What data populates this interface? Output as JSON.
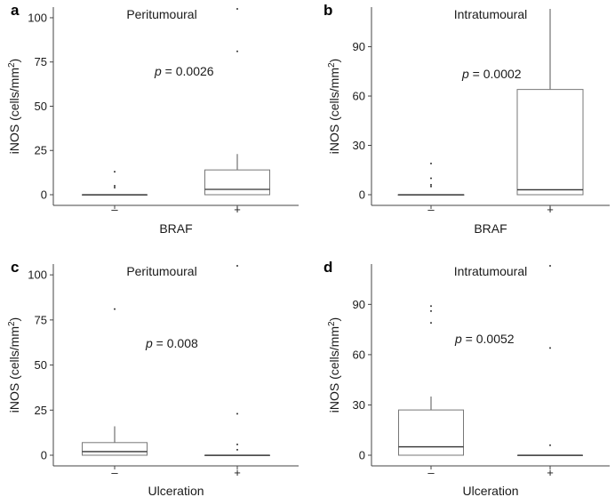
{
  "chart_data": [
    {
      "type": "box",
      "panel_letter": "a",
      "title": "Peritumoural",
      "xlabel": "BRAF",
      "ylabel": "iNOS (cells/mm",
      "ylabel_sup": "2",
      "ylabel_close": ")",
      "ylim": [
        0,
        105
      ],
      "yticks": [
        0,
        25,
        50,
        75,
        100
      ],
      "ytick_labels": [
        "0",
        "25",
        "50",
        "75",
        "100"
      ],
      "categories": [
        "–",
        "+"
      ],
      "p_label": "p",
      "p_value": " = 0.0026",
      "boxes": [
        {
          "category": "–",
          "min": 0,
          "q1": 0,
          "median": 0,
          "q3": 0,
          "max": 0,
          "outliers": [
            4,
            5,
            13
          ]
        },
        {
          "category": "+",
          "min": 0,
          "q1": 0,
          "median": 3,
          "q3": 14,
          "max": 23,
          "outliers": [
            81,
            105
          ]
        }
      ]
    },
    {
      "type": "box",
      "panel_letter": "b",
      "title": "Intratumoural",
      "xlabel": "BRAF",
      "ylabel": "iNOS (cells/mm",
      "ylabel_sup": "2",
      "ylabel_close": ")",
      "ylim": [
        0,
        113
      ],
      "yticks": [
        0,
        30,
        60,
        90
      ],
      "ytick_labels": [
        "0",
        "30",
        "60",
        "90"
      ],
      "categories": [
        "–",
        "+"
      ],
      "p_label": "p",
      "p_value": " = 0.0002",
      "boxes": [
        {
          "category": "–",
          "min": 0,
          "q1": 0,
          "median": 0,
          "q3": 0,
          "max": 0,
          "outliers": [
            5,
            6,
            10,
            19
          ]
        },
        {
          "category": "+",
          "min": 0,
          "q1": 0,
          "median": 3,
          "q3": 64,
          "max": 113,
          "outliers": []
        }
      ]
    },
    {
      "type": "box",
      "panel_letter": "c",
      "title": "Peritumoural",
      "xlabel": "Ulceration",
      "ylabel": "iNOS (cells/mm",
      "ylabel_sup": "2",
      "ylabel_close": ")",
      "ylim": [
        0,
        105
      ],
      "yticks": [
        0,
        25,
        50,
        75,
        100
      ],
      "ytick_labels": [
        "0",
        "25",
        "50",
        "75",
        "100"
      ],
      "categories": [
        "–",
        "+"
      ],
      "p_label": "p",
      "p_value": " = 0.008",
      "boxes": [
        {
          "category": "–",
          "min": 0,
          "q1": 0,
          "median": 2,
          "q3": 7,
          "max": 16,
          "outliers": [
            81
          ]
        },
        {
          "category": "+",
          "min": 0,
          "q1": 0,
          "median": 0,
          "q3": 0,
          "max": 0,
          "outliers": [
            3,
            6,
            23,
            105
          ]
        }
      ]
    },
    {
      "type": "box",
      "panel_letter": "d",
      "title": "Intratumoural",
      "xlabel": "Ulceration",
      "ylabel": "iNOS (cells/mm",
      "ylabel_sup": "2",
      "ylabel_close": ")",
      "ylim": [
        0,
        113
      ],
      "yticks": [
        0,
        30,
        60,
        90
      ],
      "ytick_labels": [
        "0",
        "30",
        "60",
        "90"
      ],
      "categories": [
        "–",
        "+"
      ],
      "p_label": "p",
      "p_value": " = 0.0052",
      "boxes": [
        {
          "category": "–",
          "min": 0,
          "q1": 0,
          "median": 5,
          "q3": 27,
          "max": 35,
          "outliers": [
            79,
            86,
            89
          ]
        },
        {
          "category": "+",
          "min": 0,
          "q1": 0,
          "median": 0,
          "q3": 0,
          "max": 0,
          "outliers": [
            6,
            64,
            113
          ]
        }
      ]
    }
  ]
}
